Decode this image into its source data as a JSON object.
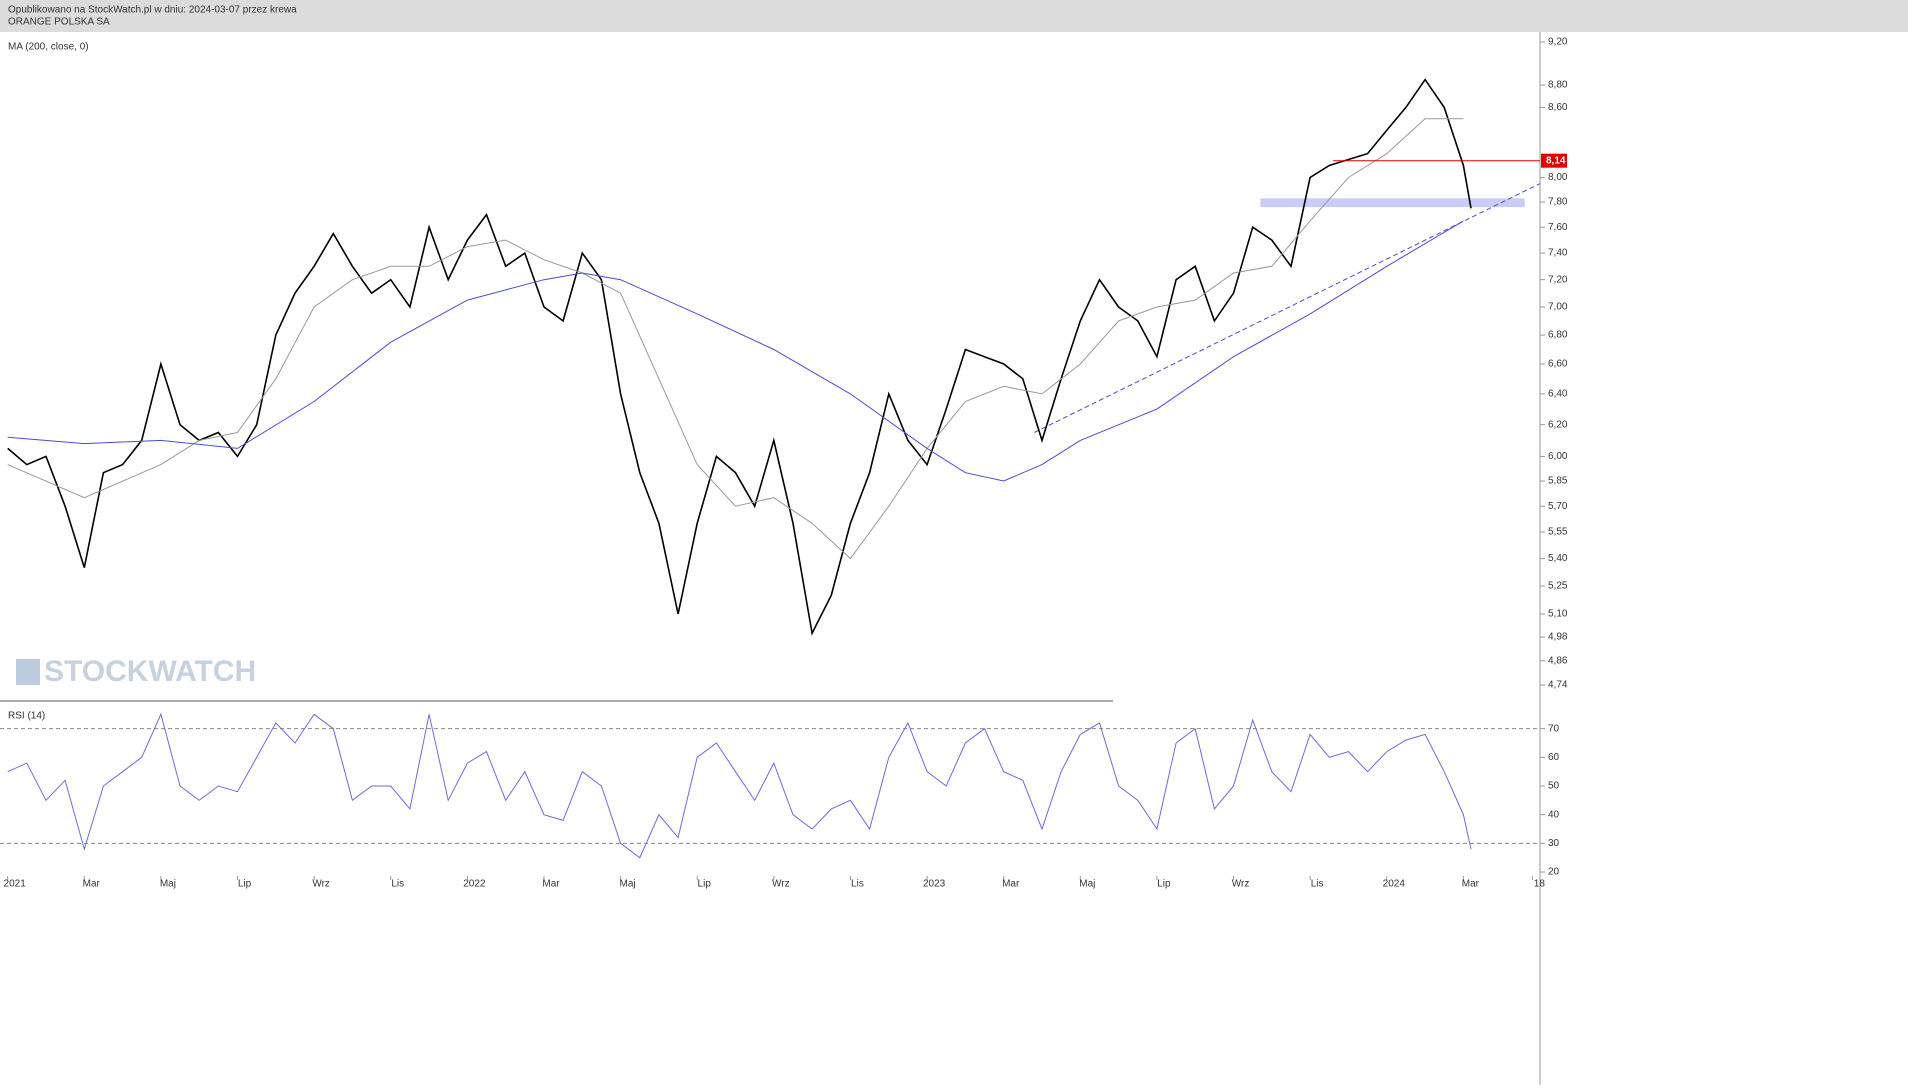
{
  "chart_data": [
    {
      "type": "line",
      "subtitle": "Opublikowano na StockWatch.pl w dniu: 2024-03-07 przez krewa",
      "title": "ORANGE POLSKA SA",
      "indicator_label": "MA (200, close, 0)",
      "watermark": "STOCKWATCH",
      "log": true,
      "xlim": [
        -0.2,
        40
      ],
      "ylim": [
        4.74,
        9.2
      ],
      "yticks": [
        {
          "value": 9.2,
          "label": "9,20"
        },
        {
          "value": 8.8,
          "label": "8,80"
        },
        {
          "value": 8.6,
          "label": "8,60"
        },
        {
          "value": 8.0,
          "label": "8,00"
        },
        {
          "value": 7.8,
          "label": "7,80"
        },
        {
          "value": 7.6,
          "label": "7,60"
        },
        {
          "value": 7.4,
          "label": "7,40"
        },
        {
          "value": 7.2,
          "label": "7,20"
        },
        {
          "value": 7.0,
          "label": "7,00"
        },
        {
          "value": 6.8,
          "label": "6,80"
        },
        {
          "value": 6.6,
          "label": "6,60"
        },
        {
          "value": 6.4,
          "label": "6,40"
        },
        {
          "value": 6.2,
          "label": "6,20"
        },
        {
          "value": 6.0,
          "label": "6,00"
        },
        {
          "value": 5.85,
          "label": "5,85"
        },
        {
          "value": 5.7,
          "label": "5,70"
        },
        {
          "value": 5.55,
          "label": "5,55"
        },
        {
          "value": 5.4,
          "label": "5,40"
        },
        {
          "value": 5.25,
          "label": "5,25"
        },
        {
          "value": 5.1,
          "label": "5,10"
        },
        {
          "value": 4.98,
          "label": "4,98"
        },
        {
          "value": 4.86,
          "label": "4,86"
        },
        {
          "value": 4.74,
          "label": "4,74"
        }
      ],
      "series": [
        {
          "color": "#000000",
          "x": [
            0,
            0.5,
            1,
            1.5,
            2,
            2.5,
            3,
            3.5,
            4,
            4.5,
            5,
            5.5,
            6,
            6.5,
            7,
            7.5,
            8,
            8.5,
            9,
            9.5,
            10,
            10.5,
            11,
            11.5,
            12,
            12.5,
            13,
            13.5,
            14,
            14.5,
            15,
            15.5,
            16,
            16.5,
            17,
            17.5,
            18,
            18.5,
            19,
            19.5,
            20,
            20.5,
            21,
            21.5,
            22,
            22.5,
            23,
            23.5,
            24,
            24.5,
            25,
            25.5,
            26,
            26.5,
            27,
            27.5,
            28,
            28.5,
            29,
            29.5,
            30,
            30.5,
            31,
            31.5,
            32,
            32.5,
            33,
            33.5,
            34,
            34.5,
            35,
            35.5,
            36,
            36.5,
            37,
            37.5,
            38,
            38.2
          ],
          "values": [
            6.05,
            5.95,
            6.0,
            5.7,
            5.35,
            5.9,
            5.95,
            6.1,
            6.6,
            6.2,
            6.1,
            6.15,
            6.0,
            6.2,
            6.8,
            7.1,
            7.3,
            7.55,
            7.3,
            7.1,
            7.2,
            7.0,
            7.6,
            7.2,
            7.5,
            7.7,
            7.3,
            7.4,
            7.0,
            6.9,
            7.4,
            7.2,
            6.4,
            5.9,
            5.6,
            5.1,
            5.6,
            6.0,
            5.9,
            5.7,
            6.1,
            5.6,
            5.0,
            5.2,
            5.6,
            5.9,
            6.4,
            6.1,
            5.95,
            6.3,
            6.7,
            6.65,
            6.6,
            6.5,
            6.1,
            6.5,
            6.9,
            7.2,
            7.0,
            6.9,
            6.65,
            7.2,
            7.3,
            6.9,
            7.1,
            7.6,
            7.5,
            7.3,
            8.0,
            8.1,
            8.15,
            8.2,
            8.4,
            8.6,
            8.85,
            8.6,
            8.1,
            7.75
          ]
        },
        {
          "color": "#999999",
          "x": [
            0,
            2,
            4,
            5,
            6,
            7,
            8,
            9,
            10,
            11,
            12,
            13,
            14,
            15,
            16,
            17,
            18,
            19,
            20,
            21,
            22,
            23,
            24,
            25,
            26,
            27,
            28,
            29,
            30,
            31,
            32,
            33,
            34,
            35,
            36,
            37,
            38
          ],
          "values": [
            5.95,
            5.75,
            5.95,
            6.1,
            6.15,
            6.5,
            7.0,
            7.2,
            7.3,
            7.3,
            7.45,
            7.5,
            7.35,
            7.25,
            7.1,
            6.5,
            5.95,
            5.7,
            5.75,
            5.6,
            5.4,
            5.7,
            6.05,
            6.35,
            6.45,
            6.4,
            6.6,
            6.9,
            7.0,
            7.05,
            7.25,
            7.3,
            7.65,
            8.0,
            8.2,
            8.5,
            8.5
          ]
        },
        {
          "name": "MA (200, close, 0)",
          "color": "#4a4adc",
          "x": [
            0,
            2,
            4,
            6,
            8,
            10,
            12,
            14,
            15,
            16,
            18,
            20,
            22,
            24,
            25,
            26,
            27,
            28,
            30,
            32,
            34,
            36,
            38
          ],
          "values": [
            6.12,
            6.08,
            6.1,
            6.05,
            6.35,
            6.75,
            7.05,
            7.2,
            7.25,
            7.2,
            6.95,
            6.7,
            6.4,
            6.05,
            5.9,
            5.85,
            5.95,
            6.1,
            6.3,
            6.65,
            6.95,
            7.3,
            7.65
          ]
        }
      ],
      "level_line": {
        "value": 8.14,
        "label": "8,14",
        "x": 34.6,
        "color": "#e00000"
      },
      "zone": {
        "x": [
          32.7,
          39.6
        ],
        "y": [
          7.76,
          7.83
        ],
        "color": "#c8ccf6"
      },
      "trendline": {
        "x": [
          26.8,
          40
        ],
        "y": [
          6.15,
          7.95
        ],
        "color": "#4a4adc"
      }
    },
    {
      "type": "line",
      "title": "RSI (14)",
      "xlim": [
        -0.2,
        40
      ],
      "ylim": [
        20,
        80
      ],
      "yticks": [
        70,
        60,
        50,
        40,
        30,
        20
      ],
      "levels": [
        70,
        30
      ],
      "xticks": [
        {
          "value": 0,
          "label": "2021"
        },
        {
          "value": 2,
          "label": "Mar"
        },
        {
          "value": 4,
          "label": "Maj"
        },
        {
          "value": 6,
          "label": "Lip"
        },
        {
          "value": 8,
          "label": "Wrz"
        },
        {
          "value": 10,
          "label": "Lis"
        },
        {
          "value": 12,
          "label": "2022"
        },
        {
          "value": 14,
          "label": "Mar"
        },
        {
          "value": 16,
          "label": "Maj"
        },
        {
          "value": 18,
          "label": "Lip"
        },
        {
          "value": 20,
          "label": "Wrz"
        },
        {
          "value": 22,
          "label": "Lis"
        },
        {
          "value": 24,
          "label": "2023"
        },
        {
          "value": 26,
          "label": "Mar"
        },
        {
          "value": 28,
          "label": "Maj"
        },
        {
          "value": 30,
          "label": "Lip"
        },
        {
          "value": 32,
          "label": "Wrz"
        },
        {
          "value": 34,
          "label": "Lis"
        },
        {
          "value": 36,
          "label": "2024"
        },
        {
          "value": 38,
          "label": "Mar"
        },
        {
          "value": 39.8,
          "label": "18"
        }
      ],
      "series": [
        {
          "color": "#6b6bdc",
          "x": [
            0,
            0.5,
            1,
            1.5,
            2,
            2.5,
            3,
            3.5,
            4,
            4.5,
            5,
            5.5,
            6,
            6.5,
            7,
            7.5,
            8,
            8.5,
            9,
            9.5,
            10,
            10.5,
            11,
            11.5,
            12,
            12.5,
            13,
            13.5,
            14,
            14.5,
            15,
            15.5,
            16,
            16.5,
            17,
            17.5,
            18,
            18.5,
            19,
            19.5,
            20,
            20.5,
            21,
            21.5,
            22,
            22.5,
            23,
            23.5,
            24,
            24.5,
            25,
            25.5,
            26,
            26.5,
            27,
            27.5,
            28,
            28.5,
            29,
            29.5,
            30,
            30.5,
            31,
            31.5,
            32,
            32.5,
            33,
            33.5,
            34,
            34.5,
            35,
            35.5,
            36,
            36.5,
            37,
            37.5,
            38,
            38.2
          ],
          "values": [
            55,
            58,
            45,
            52,
            28,
            50,
            55,
            60,
            75,
            50,
            45,
            50,
            48,
            60,
            72,
            65,
            75,
            70,
            45,
            50,
            50,
            42,
            75,
            45,
            58,
            62,
            45,
            55,
            40,
            38,
            55,
            50,
            30,
            25,
            40,
            32,
            60,
            65,
            55,
            45,
            58,
            40,
            35,
            42,
            45,
            35,
            60,
            72,
            55,
            50,
            65,
            70,
            55,
            52,
            35,
            55,
            68,
            72,
            50,
            45,
            35,
            65,
            70,
            42,
            50,
            73,
            55,
            48,
            68,
            60,
            62,
            55,
            62,
            66,
            68,
            55,
            40,
            28
          ]
        }
      ]
    }
  ]
}
